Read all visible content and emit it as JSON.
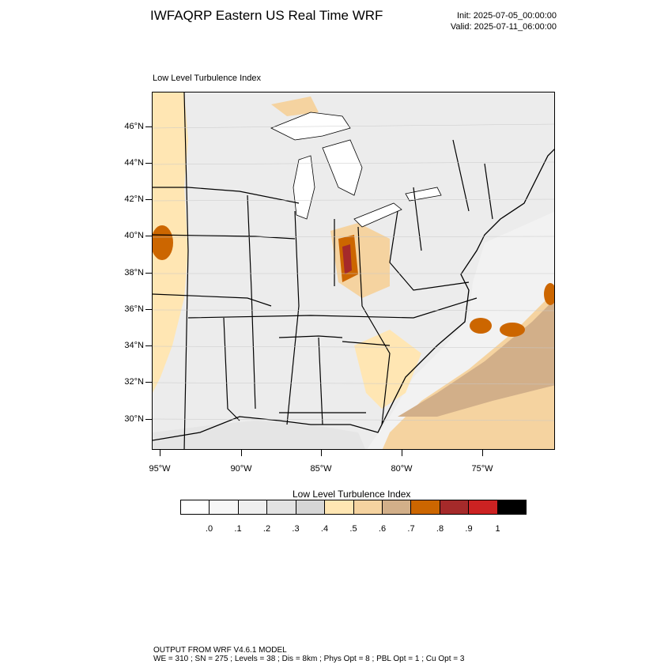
{
  "header": {
    "title": "IWFAQRP Eastern US Real Time WRF",
    "init": "Init: 2025-07-05_00:00:00",
    "valid": "Valid: 2025-07-11_06:00:00"
  },
  "map": {
    "subtitle": "Low Level Turbulence Index",
    "lat_labels": [
      "46°N",
      "44°N",
      "42°N",
      "40°N",
      "38°N",
      "36°N",
      "34°N",
      "32°N",
      "30°N"
    ],
    "lon_labels": [
      "95°W",
      "90°W",
      "85°W",
      "80°W",
      "75°W"
    ],
    "land_color": "#ececec",
    "lake_water_color": "#ffffff",
    "ocean_color": "#f2f2f2"
  },
  "colorbar": {
    "title": "Low Level Turbulence Index",
    "colors": [
      "#ffffff",
      "#f7f7f7",
      "#efefef",
      "#e3e3e3",
      "#d6d6d6",
      "#ffe6b3",
      "#f5d3a0",
      "#d2af89",
      "#cc6600",
      "#a52a2a",
      "#cc2222",
      "#000000"
    ],
    "labels": [
      ".0",
      ".1",
      ".2",
      ".3",
      ".4",
      ".5",
      ".6",
      ".7",
      ".8",
      ".9",
      "1"
    ]
  },
  "footer": {
    "line1": "OUTPUT FROM WRF V4.6.1 MODEL",
    "line2": "WE = 310 ; SN = 275 ; Levels = 38 ; Dis = 8km ; Phys Opt = 8 ; PBL Opt = 1 ; Cu Opt = 3"
  }
}
